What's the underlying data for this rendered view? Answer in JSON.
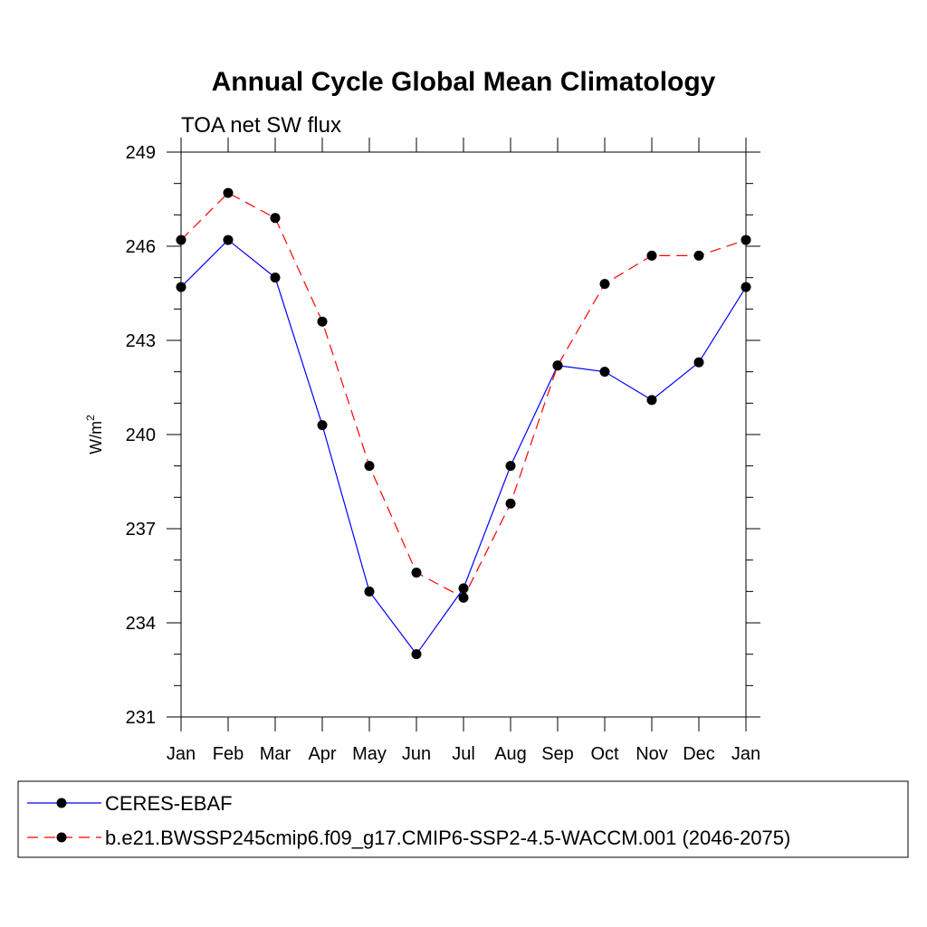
{
  "chart_data": {
    "type": "line",
    "title": "Annual Cycle Global Mean Climatology",
    "subtitle": "TOA net SW flux",
    "xlabel": "",
    "ylabel": "W/m",
    "ylabel_sup": "2",
    "categories": [
      "Jan",
      "Feb",
      "Mar",
      "Apr",
      "May",
      "Jun",
      "Jul",
      "Aug",
      "Sep",
      "Oct",
      "Nov",
      "Dec",
      "Jan"
    ],
    "ylim": [
      231,
      249
    ],
    "yticks": [
      231,
      234,
      237,
      240,
      243,
      246,
      249
    ],
    "yminor_step": 1,
    "grid": false,
    "series": [
      {
        "name": "CERES-EBAF",
        "color": "#0000ff",
        "dash": "solid",
        "values": [
          244.7,
          246.2,
          245.0,
          240.3,
          235.0,
          233.0,
          235.1,
          239.0,
          242.2,
          242.0,
          241.1,
          242.3,
          244.7
        ]
      },
      {
        "name": "b.e21.BWSSP245cmip6.f09_g17.CMIP6-SSP2-4.5-WACCM.001 (2046-2075)",
        "color": "#ff0000",
        "dash": "dashed",
        "values": [
          246.2,
          247.7,
          246.9,
          243.6,
          239.0,
          235.6,
          234.8,
          237.8,
          242.2,
          244.8,
          245.7,
          245.7,
          246.2
        ]
      }
    ],
    "legend": {
      "placement": "bottom",
      "entries": [
        "CERES-EBAF",
        "b.e21.BWSSP245cmip6.f09_g17.CMIP6-SSP2-4.5-WACCM.001 (2046-2075)"
      ]
    }
  }
}
